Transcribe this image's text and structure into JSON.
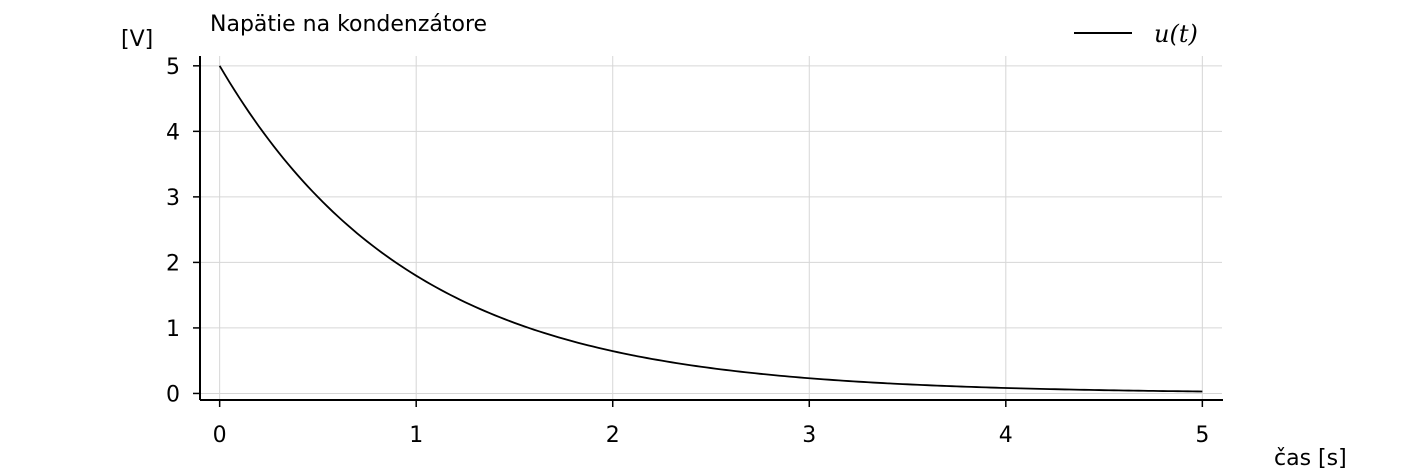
{
  "chart_data": {
    "type": "line",
    "title": "Napätie na kondenzátore",
    "xlabel": "čas [s]",
    "ylabel": "[V]",
    "xlim": [
      -0.1,
      5.1
    ],
    "ylim": [
      -0.1,
      5.15
    ],
    "xticks": [
      0,
      1,
      2,
      3,
      4,
      5
    ],
    "yticks": [
      0,
      1,
      2,
      3,
      4,
      5
    ],
    "grid": true,
    "legend_position": "top-right",
    "series": [
      {
        "name": "u(t)",
        "color": "#000000",
        "x": [
          0,
          0.25,
          0.5,
          0.75,
          1.0,
          1.25,
          1.5,
          1.75,
          2.0,
          2.25,
          2.5,
          2.75,
          3.0,
          3.25,
          3.5,
          3.75,
          4.0,
          4.25,
          4.5,
          4.75,
          5.0
        ],
        "y": [
          5.0,
          3.89,
          3.03,
          2.36,
          1.84,
          1.43,
          1.12,
          0.87,
          0.68,
          0.53,
          0.41,
          0.32,
          0.25,
          0.19,
          0.15,
          0.12,
          0.09,
          0.07,
          0.06,
          0.04,
          0.03
        ]
      }
    ]
  }
}
